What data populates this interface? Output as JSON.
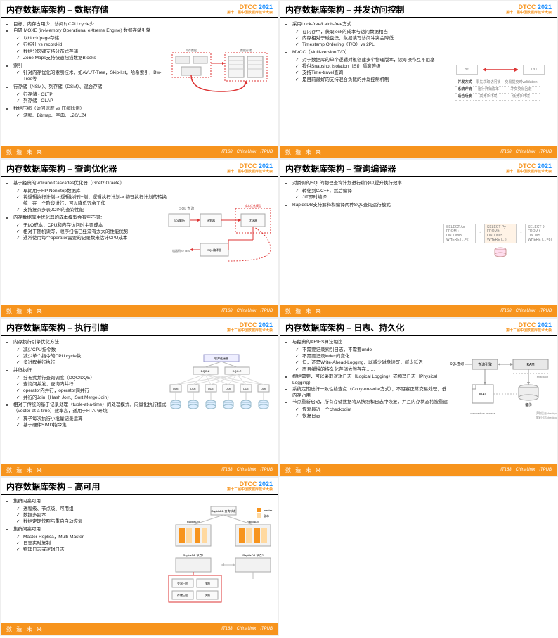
{
  "branding": {
    "conf": "DTCC",
    "year": "2021",
    "subtitle": "第十二届中国数据库技术大会",
    "footer_left": "数 造 未 来",
    "footer_sponsors": [
      "IT168",
      "ChinaUnix",
      "ITPUB"
    ]
  },
  "slides": [
    {
      "title": "内存数据库架构 – 数据存储",
      "bullets": [
        {
          "t": "目标：内存占用少，访问时CPU cycle少"
        },
        {
          "t": "自研 MOXE (in-Memory Operational eXtreme Engine) 数据存储引擎",
          "sub": [
            "以block/page存储",
            "行指针 vs record-id",
            "数据分区键支持分布式存储",
            "Zone Maps支持快速扫描数据Blocks"
          ]
        },
        {
          "t": "索引",
          "sub": [
            "针对内存优化的索引技术，如AVL/T-Tree，Skip-list，哈希索引，Bw-Tree等"
          ]
        },
        {
          "t": "行存储（NSM）、列存储（DSM）、混合存储",
          "sub": [
            "行存储 - OLTP",
            "列存储 - OLAP"
          ]
        },
        {
          "t": "数据压缩（访问速度 vs 压缩比例）",
          "sub": [
            "游程、Bitmap、字典、LZ0/LZ4"
          ]
        }
      ],
      "diagram_type": "storage"
    },
    {
      "title": "内存数据库架构 – 并发访问控制",
      "bullets": [
        {
          "t": "采用Lock-free/Latch-free方式",
          "sub": [
            "在内存中，获取lock的成本与访问数据相当",
            "内存相对于磁盘快，数据读写访问冲突会降低",
            "Timestamp Ordering（T/O）vs 2PL"
          ]
        },
        {
          "t": "MVCC（Multi-version T/O）",
          "sub": [
            "对于数据库的单个逻辑对象创建多个物理版本，读写操作互不阻塞",
            "提供Snapshot Isolation（SI）隔离等级",
            "支持Time-travel查询",
            "是目前最好的支持混合负载的并发控制机制"
          ]
        }
      ],
      "diagram_type": "mvcc"
    },
    {
      "title": "内存数据库架构 – 查询优化器",
      "bullets": [
        {
          "t": "基于经典的Volcano/Cascades优化器（Goetz Graefe）",
          "sub": [
            "早期用于HP NonStop数据库",
            "将逻辑执行计划-> 逻辑执行计划、逻辑执行计划-> 物理执行计划的转换统一在一个阶段进行，可以降低冗余工作",
            "支持复杂多表JOIN的查询性能"
          ]
        },
        {
          "t": "内存数据库中优化器的成本模型会有些不同：",
          "sub": [
            "无I/O成本，CPU和内存访问时主要成本",
            "相对于随机读写，顺序扫描已经没有太大的性能优势",
            "通常使用每个operator需要的记录数来估计CPU成本"
          ]
        }
      ],
      "diagram_type": "optimizer"
    },
    {
      "title": "内存数据库架构 – 查询编译器",
      "bullets": [
        {
          "t": "对类似的SQL的物理查询计划进行编译以提升执行效率",
          "sub": [
            "转化到C/C++，然后编译",
            "JIT即时编译"
          ]
        },
        {
          "t": "RapidsDB支持解释和编译两种SQL查询运行模式"
        }
      ],
      "diagram_type": "compiler"
    },
    {
      "title": "内存数据库架构 – 执行引擎",
      "bullets": [
        {
          "t": "内存执行引擎优化方法",
          "sub": [
            "减少CPU指令数",
            "减少单个指令的CPU cycle数",
            "多进程并行执行"
          ]
        },
        {
          "t": "并行执行",
          "sub": [
            "分布式并行查询调度（DQC/DQE）",
            "查询间并发、查询内并行",
            "operator内并行，operator间并行",
            "并行的Join（Hash Join、Sort Merge Join）"
          ]
        },
        {
          "t": "相对于传统的基于记录处理（tuple-at-a-time）的处理模式，向量化执行模式（vector-at-a-time）效率高，适用于HTAP环境",
          "sub": [
            "算子每次执行小批量记录运算",
            "基于硬件SIMD指令集"
          ]
        }
      ],
      "diagram_type": "exec"
    },
    {
      "title": "内存数据库架构 – 日志、持久化",
      "bullets": [
        {
          "t": "与经典的ARIES算法相比……",
          "sub": [
            "不需要记录索引日志，不需要undo",
            "不需要记录index的变化",
            "但，还是Write-Ahead-Logging，以减少磁盘读写，减少延迟",
            "而且缓慢的持久化存储依然存在……"
          ]
        },
        {
          "t": "根据需要，可以采取逻辑日志（Logical Logging）或物理日志（Physical Logging）"
        },
        {
          "t": "系统定期进行一致性检查点（Copy-on-write方式），不阻塞正常交易处理，低内存占用"
        },
        {
          "t": "节点重新启动，所有存储数据将从快照和日志中恢复，并且内存状态将被重建",
          "sub": [
            "恢复最近一个checkpoint",
            "恢复日志"
          ]
        }
      ],
      "diagram_type": "log"
    },
    {
      "title": "内存数据库架构 – 高可用",
      "bullets": [
        {
          "t": "集群内高可用",
          "sub": [
            "进程级、节点级、可用组",
            "数据多副本",
            "数据定期快照与重启自动恢复"
          ]
        },
        {
          "t": "集群间高可用",
          "sub": [
            "Master-Replica，Multi-Master",
            "日志实时复制",
            "物理日志或逻辑日志"
          ]
        }
      ],
      "diagram_type": "ha"
    }
  ],
  "mvcc_table": {
    "rows": [
      [
        "并发方式",
        "事先获取访问锁",
        "交易提交时validation"
      ],
      [
        "系统开销",
        "运行开销成本",
        "冲突交易回滚"
      ],
      [
        "适合场景",
        "高竞争环境",
        "低竞争环境"
      ]
    ],
    "header": [
      "2PL",
      "T/O"
    ]
  }
}
